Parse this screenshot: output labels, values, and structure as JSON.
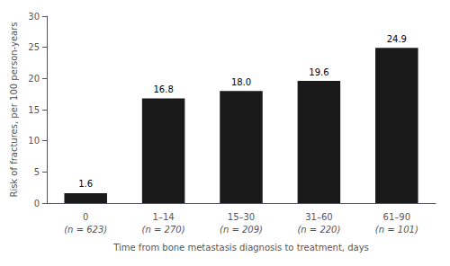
{
  "chart_data": {
    "type": "bar",
    "categories": [
      "0",
      "1–14",
      "15–30",
      "31–60",
      "61–90"
    ],
    "sample_sizes": [
      "(n = 623)",
      "(n = 270)",
      "(n = 209)",
      "(n = 220)",
      "(n = 101)"
    ],
    "values": [
      1.6,
      16.8,
      18.0,
      19.6,
      24.9
    ],
    "value_labels": [
      "1.6",
      "16.8",
      "18.0",
      "19.6",
      "24.9"
    ],
    "data_labels": true,
    "color": "#1a1a1a",
    "ylim": [
      0,
      30
    ],
    "yticks": [
      0,
      5,
      10,
      15,
      20,
      25,
      30
    ],
    "ylabel": "Risk of fractures, per 100 person-years",
    "xlabel": "Time from bone metastasis diagnosis to treatment, days",
    "grid": false
  }
}
